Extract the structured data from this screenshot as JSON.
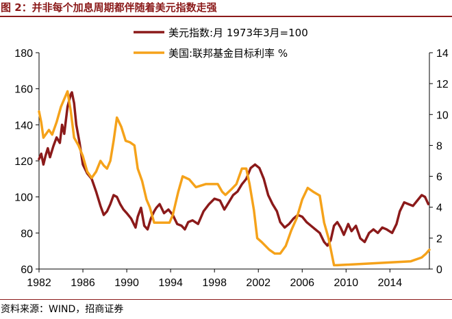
{
  "figure_title": "图 2：并非每个加息周期都伴随着美元指数走强",
  "source_note": "资料来源：WIND，招商证券",
  "colors": {
    "accent": "#8B1A1A",
    "dxy": "#8B1A1A",
    "ffr": "#F5A21A"
  },
  "chart_data": {
    "type": "line",
    "title": "",
    "xlabel": "",
    "xlim": [
      1982,
      2017.6
    ],
    "x_ticks": [
      1982,
      1986,
      1990,
      1994,
      1998,
      2002,
      2006,
      2010,
      2014
    ],
    "x_tick_labels": [
      "1982",
      "1986",
      "1990",
      "1994",
      "1998",
      "2002",
      "2006",
      "2010",
      "2014"
    ],
    "y_left": {
      "lim": [
        60,
        180
      ],
      "ticks": [
        60,
        80,
        100,
        120,
        140,
        160,
        180
      ],
      "tick_labels": [
        "60",
        "80",
        "100",
        "120",
        "140",
        "160",
        "180"
      ]
    },
    "y_right": {
      "lim": [
        0,
        14
      ],
      "ticks": [
        0,
        2,
        4,
        6,
        8,
        10,
        12,
        14
      ],
      "tick_labels": [
        "0",
        "2",
        "4",
        "6",
        "8",
        "10",
        "12",
        "14"
      ]
    },
    "legend_position": "top-center",
    "series": [
      {
        "name": "美元指数:月 1973年3月=100",
        "axis": "left",
        "color": "#8B1A1A",
        "x": [
          1982.0,
          1982.2,
          1982.4,
          1982.6,
          1982.8,
          1983.0,
          1983.3,
          1983.6,
          1983.9,
          1984.1,
          1984.3,
          1984.6,
          1984.9,
          1985.0,
          1985.2,
          1985.4,
          1985.7,
          1986.0,
          1986.4,
          1986.8,
          1987.2,
          1987.6,
          1987.9,
          1988.2,
          1988.5,
          1988.8,
          1989.1,
          1989.4,
          1989.7,
          1990.0,
          1990.4,
          1990.8,
          1991.0,
          1991.3,
          1991.6,
          1991.9,
          1992.2,
          1992.5,
          1992.7,
          1993.0,
          1993.4,
          1993.8,
          1994.2,
          1994.6,
          1995.0,
          1995.3,
          1995.6,
          1996.0,
          1996.5,
          1997.0,
          1997.5,
          1998.0,
          1998.5,
          1998.9,
          1999.3,
          1999.7,
          2000.1,
          2000.5,
          2000.9,
          2001.3,
          2001.7,
          2002.1,
          2002.5,
          2002.9,
          2003.3,
          2003.7,
          2004.0,
          2004.4,
          2004.8,
          2005.2,
          2005.6,
          2006.0,
          2006.4,
          2006.8,
          2007.2,
          2007.6,
          2008.0,
          2008.3,
          2008.6,
          2008.9,
          2009.2,
          2009.5,
          2009.8,
          2010.2,
          2010.5,
          2010.9,
          2011.3,
          2011.7,
          2012.1,
          2012.5,
          2012.9,
          2013.3,
          2013.7,
          2014.2,
          2014.6,
          2014.9,
          2015.3,
          2015.7,
          2016.1,
          2016.5,
          2016.9,
          2017.2,
          2017.5
        ],
        "values": [
          121,
          124,
          118,
          123,
          127,
          122,
          128,
          133,
          130,
          140,
          135,
          150,
          157,
          158,
          152,
          140,
          130,
          118,
          113,
          110,
          103,
          95,
          90,
          92,
          96,
          101,
          100,
          96,
          93,
          91,
          88,
          83,
          89,
          94,
          84,
          82,
          88,
          92,
          94,
          96,
          91,
          93,
          90,
          85,
          84,
          82,
          86,
          87,
          85,
          92,
          96,
          99,
          98,
          93,
          97,
          101,
          103,
          107,
          110,
          116,
          118,
          116,
          110,
          101,
          96,
          92,
          86,
          83,
          85,
          88,
          90,
          89,
          86,
          84,
          82,
          80,
          75,
          73,
          76,
          84,
          86,
          83,
          79,
          85,
          81,
          84,
          77,
          75,
          80,
          82,
          80,
          83,
          82,
          80,
          85,
          92,
          97,
          96,
          95,
          98,
          101,
          100,
          96
        ]
      },
      {
        "name": "美国:联邦基金目标利率 %",
        "axis": "right",
        "color": "#F5A21A",
        "x": [
          1982.0,
          1982.2,
          1982.4,
          1982.7,
          1982.9,
          1983.2,
          1983.6,
          1984.0,
          1984.3,
          1984.6,
          1984.9,
          1985.2,
          1985.6,
          1986.0,
          1986.4,
          1986.8,
          1987.2,
          1987.6,
          1987.9,
          1988.2,
          1988.5,
          1988.8,
          1989.1,
          1989.5,
          1989.9,
          1990.3,
          1990.7,
          1991.0,
          1991.4,
          1991.8,
          1992.1,
          1992.5,
          1993.2,
          1993.9,
          1994.2,
          1994.7,
          1995.1,
          1995.7,
          1996.3,
          1997.2,
          1998.3,
          1998.7,
          1999.0,
          1999.6,
          2000.0,
          2000.5,
          2000.9,
          2001.2,
          2001.6,
          2001.9,
          2002.3,
          2003.0,
          2003.5,
          2004.0,
          2004.5,
          2005.0,
          2005.5,
          2006.0,
          2006.5,
          2007.0,
          2007.6,
          2008.0,
          2008.4,
          2008.9,
          2009.2,
          2015.9,
          2016.9,
          2017.3,
          2017.6
        ],
        "values": [
          10.2,
          9.5,
          8.5,
          8.8,
          9.0,
          8.7,
          9.5,
          10.5,
          11.0,
          11.5,
          10.2,
          8.5,
          8.0,
          7.3,
          6.3,
          5.9,
          6.3,
          7.0,
          6.7,
          6.5,
          7.0,
          8.3,
          9.8,
          9.2,
          8.3,
          8.2,
          8.0,
          6.5,
          5.7,
          4.5,
          4.0,
          3.0,
          3.0,
          3.0,
          3.5,
          5.0,
          6.0,
          5.8,
          5.3,
          5.5,
          5.5,
          5.0,
          4.8,
          5.2,
          5.5,
          6.5,
          6.5,
          5.5,
          3.8,
          2.0,
          1.75,
          1.25,
          1.0,
          1.0,
          1.5,
          2.5,
          3.3,
          4.5,
          5.25,
          5.0,
          4.75,
          3.0,
          2.0,
          0.25,
          0.25,
          0.5,
          0.75,
          1.0,
          1.25
        ]
      }
    ]
  }
}
